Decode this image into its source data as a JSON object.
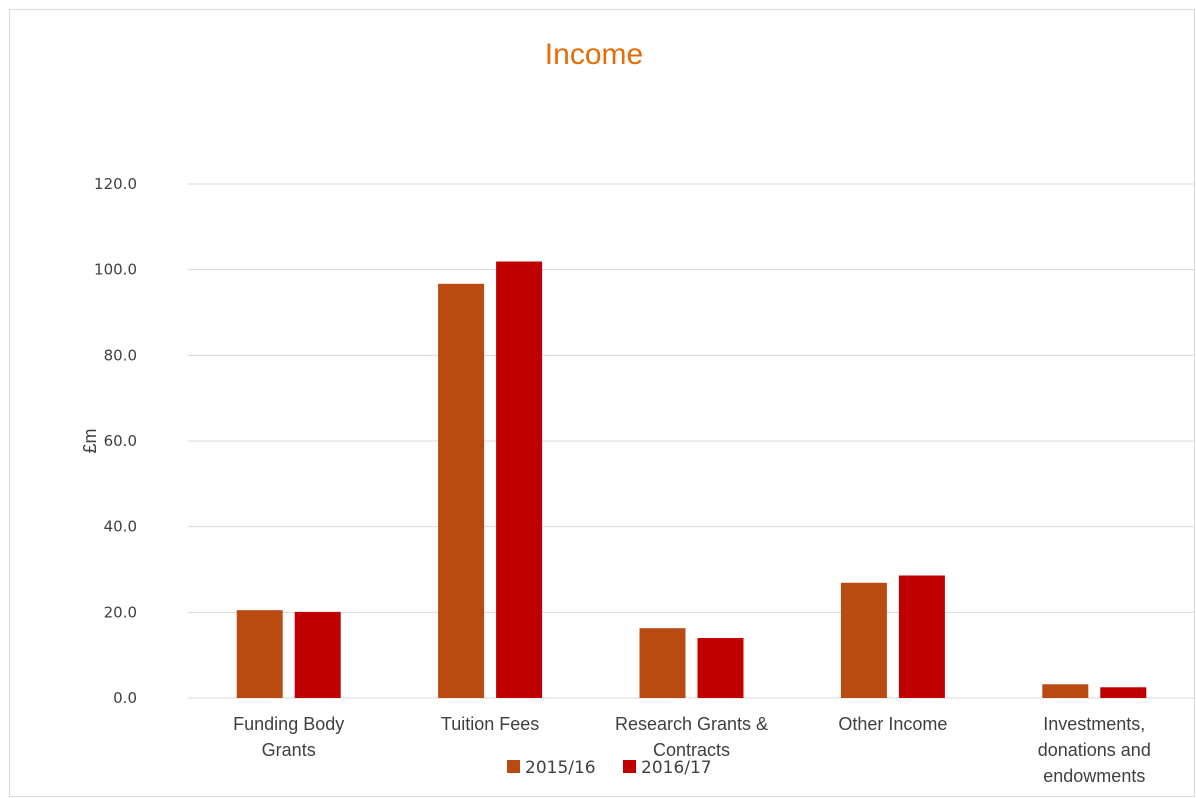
{
  "chart_data": {
    "type": "bar",
    "title": "Income",
    "xlabel": "",
    "ylabel": "£m",
    "ylim": [
      0,
      120
    ],
    "yticks": [
      "0.0",
      "20.0",
      "40.0",
      "60.0",
      "80.0",
      "100.0",
      "120.0"
    ],
    "grid": true,
    "legend_position": "bottom",
    "categories": [
      [
        "Funding Body",
        "Grants"
      ],
      [
        "Tuition Fees"
      ],
      [
        "Research Grants &",
        "Contracts"
      ],
      [
        "Other Income"
      ],
      [
        "Investments,",
        "donations and",
        "endowments"
      ]
    ],
    "series": [
      {
        "name": "2015/16",
        "color": "#b84a12",
        "values": [
          20.5,
          96.7,
          16.3,
          26.9,
          3.2
        ]
      },
      {
        "name": "2016/17",
        "color": "#c00000",
        "values": [
          20.1,
          101.9,
          14.0,
          28.6,
          2.5
        ]
      }
    ]
  }
}
